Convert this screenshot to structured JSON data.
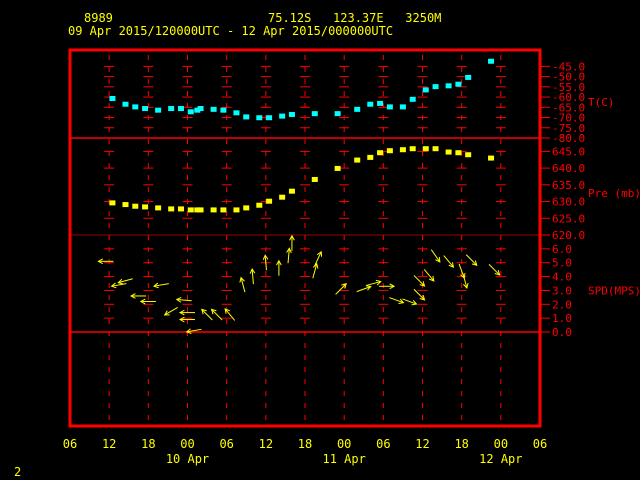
{
  "header": {
    "station": "8989",
    "location": "75.12S   123.37E   3250M",
    "period": "09 Apr 2015/120000UTC - 12 Apr 2015/000000UTC"
  },
  "footer_label": "2",
  "colors": {
    "frame": "#ff0000",
    "text": "#ffff00",
    "temperature": "#00ffff",
    "pressure": "#ffff00",
    "wind": "#ffff00"
  },
  "chart_data": {
    "type": "scatter",
    "x_axis": {
      "range": [
        "2015-04-09 06:00",
        "2015-04-12 06:00"
      ],
      "tick_labels": [
        "06",
        "12",
        "18",
        "00",
        "06",
        "12",
        "18",
        "00",
        "06",
        "12",
        "18",
        "00",
        "06"
      ],
      "date_labels": [
        {
          "label": "10 Apr",
          "at": "2015-04-10 00:00"
        },
        {
          "label": "11 Apr",
          "at": "2015-04-11 00:00"
        },
        {
          "label": "12 Apr",
          "at": "2015-04-12 00:00"
        }
      ]
    },
    "panels": [
      {
        "name": "temperature",
        "label": "T(C)",
        "ylim": [
          -80,
          -37
        ],
        "tick_labels": [
          "-45.0",
          "-50.0",
          "-55.0",
          "-60.0",
          "-65.0",
          "-70.0",
          "-75.0",
          "-80.0"
        ],
        "ticks": [
          -45,
          -50,
          -55,
          -60,
          -65,
          -70,
          -75,
          -80
        ]
      },
      {
        "name": "pressure",
        "label": "Pre (mb)",
        "ylim": [
          620,
          649
        ],
        "tick_labels": [
          "645.0",
          "640.0",
          "635.0",
          "630.0",
          "625.0",
          "620.0"
        ],
        "ticks": [
          645,
          640,
          635,
          630,
          625,
          620
        ]
      },
      {
        "name": "wind",
        "label": "SPD(MPS)",
        "ylim": [
          0,
          7
        ],
        "tick_labels": [
          "6.0",
          "5.0",
          "4.0",
          "3.0",
          "2.0",
          "1.0",
          "0.0"
        ],
        "ticks": [
          6,
          5,
          4,
          3,
          2,
          1,
          0
        ]
      }
    ],
    "times": [
      "2015-04-09 12:30",
      "2015-04-09 14:30",
      "2015-04-09 16:00",
      "2015-04-09 17:30",
      "2015-04-09 19:30",
      "2015-04-09 21:30",
      "2015-04-09 23:00",
      "2015-04-10 00:30",
      "2015-04-10 01:30",
      "2015-04-10 02:00",
      "2015-04-10 04:00",
      "2015-04-10 05:30",
      "2015-04-10 07:30",
      "2015-04-10 09:00",
      "2015-04-10 11:00",
      "2015-04-10 12:30",
      "2015-04-10 14:30",
      "2015-04-10 16:00",
      "2015-04-10 19:30",
      "2015-04-10 23:00",
      "2015-04-11 02:00",
      "2015-04-11 04:00",
      "2015-04-11 05:30",
      "2015-04-11 07:00",
      "2015-04-11 09:00",
      "2015-04-11 10:30",
      "2015-04-11 12:30",
      "2015-04-11 14:00",
      "2015-04-11 16:00",
      "2015-04-11 17:30",
      "2015-04-11 19:00",
      "2015-04-11 22:30"
    ],
    "temperature_c": [
      -60.7,
      -63.5,
      -64.8,
      -65.6,
      -66.4,
      -65.6,
      -65.6,
      -67.2,
      -66.4,
      -65.6,
      -66.0,
      -66.4,
      -67.7,
      -69.7,
      -70.1,
      -70.1,
      -69.3,
      -68.5,
      -68.1,
      -68.1,
      -66.0,
      -63.5,
      -63.1,
      -64.8,
      -64.8,
      -61.1,
      -56.5,
      -54.9,
      -54.5,
      -53.7,
      -50.4,
      -42.5
    ],
    "pressure_mb": [
      629.6,
      629.1,
      628.6,
      628.4,
      628.1,
      627.8,
      627.8,
      627.5,
      627.5,
      627.5,
      627.5,
      627.5,
      627.5,
      628.1,
      628.9,
      630.1,
      631.3,
      633.1,
      636.6,
      639.9,
      642.4,
      643.2,
      644.6,
      645.2,
      645.5,
      645.8,
      645.8,
      645.8,
      644.8,
      644.6,
      644.0,
      643.0
    ],
    "wind": [
      {
        "time": "2015-04-09 11:30",
        "speed": 5.1,
        "dir": 90
      },
      {
        "time": "2015-04-09 13:30",
        "speed": 3.4,
        "dir": 80
      },
      {
        "time": "2015-04-09 14:30",
        "speed": 3.7,
        "dir": 75
      },
      {
        "time": "2015-04-09 16:30",
        "speed": 2.6,
        "dir": 90
      },
      {
        "time": "2015-04-09 18:00",
        "speed": 2.2,
        "dir": 90
      },
      {
        "time": "2015-04-09 20:00",
        "speed": 3.4,
        "dir": 80
      },
      {
        "time": "2015-04-09 21:30",
        "speed": 1.5,
        "dir": 60
      },
      {
        "time": "2015-04-09 23:30",
        "speed": 2.3,
        "dir": 95
      },
      {
        "time": "2015-04-10 00:00",
        "speed": 1.4,
        "dir": 90
      },
      {
        "time": "2015-04-10 00:00",
        "speed": 0.9,
        "dir": 90
      },
      {
        "time": "2015-04-10 01:00",
        "speed": 0.1,
        "dir": 80
      },
      {
        "time": "2015-04-10 03:00",
        "speed": 1.25,
        "dir": 135
      },
      {
        "time": "2015-04-10 04:30",
        "speed": 1.25,
        "dir": 135
      },
      {
        "time": "2015-04-10 06:30",
        "speed": 1.25,
        "dir": 140
      },
      {
        "time": "2015-04-10 08:30",
        "speed": 3.4,
        "dir": 165
      },
      {
        "time": "2015-04-10 10:00",
        "speed": 4.0,
        "dir": 175
      },
      {
        "time": "2015-04-10 12:00",
        "speed": 5.0,
        "dir": 175
      },
      {
        "time": "2015-04-10 14:00",
        "speed": 4.6,
        "dir": 180
      },
      {
        "time": "2015-04-10 15:30",
        "speed": 5.5,
        "dir": 185
      },
      {
        "time": "2015-04-10 16:00",
        "speed": 6.4,
        "dir": 180
      },
      {
        "time": "2015-04-10 19:30",
        "speed": 4.4,
        "dir": 195
      },
      {
        "time": "2015-04-10 20:00",
        "speed": 5.3,
        "dir": 205
      },
      {
        "time": "2015-04-10 23:30",
        "speed": 3.1,
        "dir": 225
      },
      {
        "time": "2015-04-11 03:00",
        "speed": 3.1,
        "dir": 250
      },
      {
        "time": "2015-04-11 04:30",
        "speed": 3.5,
        "dir": 255
      },
      {
        "time": "2015-04-11 06:30",
        "speed": 3.3,
        "dir": 270
      },
      {
        "time": "2015-04-11 08:00",
        "speed": 2.3,
        "dir": 290
      },
      {
        "time": "2015-04-11 10:00",
        "speed": 2.2,
        "dir": 290
      },
      {
        "time": "2015-04-11 11:30",
        "speed": 2.7,
        "dir": 315
      },
      {
        "time": "2015-04-11 11:30",
        "speed": 3.7,
        "dir": 315
      },
      {
        "time": "2015-04-11 13:00",
        "speed": 4.1,
        "dir": 320
      },
      {
        "time": "2015-04-11 14:00",
        "speed": 5.5,
        "dir": 325
      },
      {
        "time": "2015-04-11 16:00",
        "speed": 5.1,
        "dir": 320
      },
      {
        "time": "2015-04-11 18:00",
        "speed": 4.4,
        "dir": 340
      },
      {
        "time": "2015-04-11 18:30",
        "speed": 3.7,
        "dir": 345
      },
      {
        "time": "2015-04-11 19:30",
        "speed": 5.2,
        "dir": 315
      },
      {
        "time": "2015-04-11 23:00",
        "speed": 4.5,
        "dir": 315
      }
    ]
  }
}
